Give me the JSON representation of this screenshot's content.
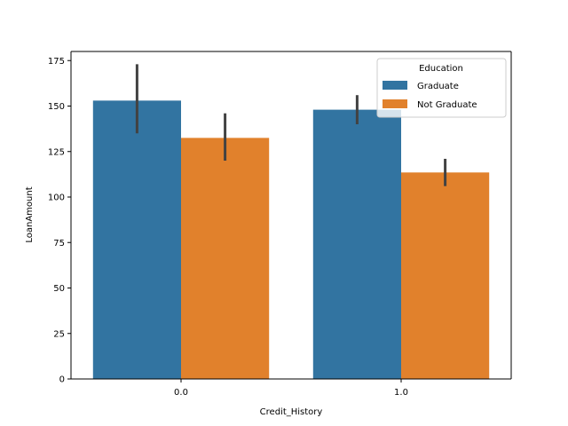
{
  "chart_data": {
    "type": "bar",
    "xlabel": "Credit_History",
    "ylabel": "LoanAmount",
    "categories": [
      "0.0",
      "1.0"
    ],
    "ylim": [
      0,
      180
    ],
    "yticks": [
      0,
      25,
      50,
      75,
      100,
      125,
      150,
      175
    ],
    "grid": false,
    "legend": {
      "title": "Education",
      "placement": "top-right"
    },
    "series": [
      {
        "name": "Graduate",
        "color": "#3274a1",
        "values": [
          153,
          148
        ],
        "error_low": [
          135,
          140
        ],
        "error_high": [
          173,
          156
        ]
      },
      {
        "name": "Not Graduate",
        "color": "#e1812c",
        "values": [
          132.5,
          113.5
        ],
        "error_low": [
          120,
          106
        ],
        "error_high": [
          146,
          121
        ]
      }
    ],
    "errorbar_color": "#424242"
  }
}
